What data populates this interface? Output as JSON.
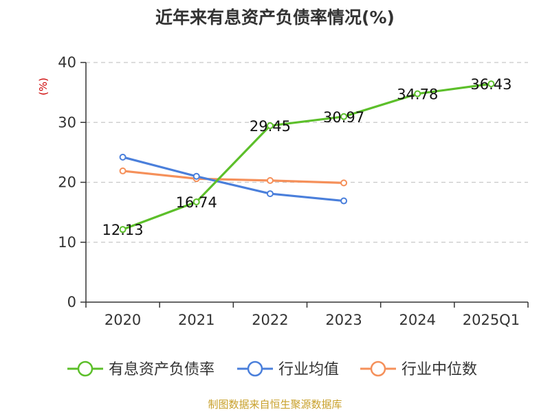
{
  "chart_data": {
    "type": "line",
    "title": "近年来有息资产负债率情况(%)",
    "ylabel": "(%)",
    "categories": [
      "2020",
      "2021",
      "2022",
      "2023",
      "2024",
      "2025Q1"
    ],
    "ylim": [
      0,
      40
    ],
    "yticks": [
      0,
      10,
      20,
      30,
      40
    ],
    "grid": "horizontal-dashed",
    "legend_position": "bottom",
    "series": [
      {
        "name": "有息资产负债率",
        "color": "#5cbf2a",
        "values": [
          12.13,
          16.74,
          29.45,
          30.97,
          34.78,
          36.43
        ],
        "labels": [
          "12.13",
          "16.74",
          "29.45",
          "30.97",
          "34.78",
          "36.43"
        ]
      },
      {
        "name": "行业均值",
        "color": "#4a7fdb",
        "values": [
          24.2,
          21.0,
          18.1,
          16.9,
          null,
          null
        ]
      },
      {
        "name": "行业中位数",
        "color": "#f5905a",
        "values": [
          21.9,
          20.6,
          20.3,
          19.9,
          null,
          null
        ]
      }
    ]
  },
  "source_note": "制图数据来自恒生聚源数据库"
}
